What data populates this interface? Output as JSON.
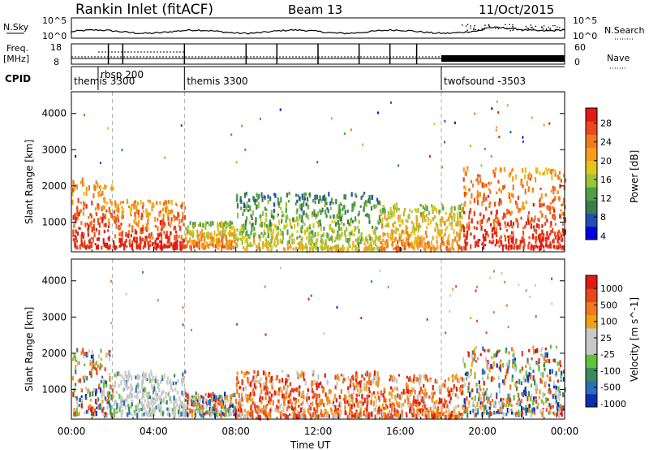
{
  "header": {
    "title": "Rankin Inlet (fitACF)",
    "beam": "Beam 13",
    "date": "11/Oct/2015"
  },
  "summary_panels": {
    "nsky_label": "N.Sky",
    "nsky_ticks": [
      "10^5",
      "10^0"
    ],
    "nsearch_label": "N.Search",
    "freq_label_1": "Freq.",
    "freq_label_2": "[MHz]",
    "freq_ticks": [
      "18",
      "8"
    ],
    "nave_label": "Nave",
    "nave_ticks": [
      "60",
      "0"
    ],
    "cpid_label": "CPID",
    "cpid_segments": [
      {
        "name": "themis 3300",
        "start_h": 0.0,
        "end_h": 1.3
      },
      {
        "name": "rbsp 200",
        "start_h": 1.3,
        "end_h": 5.5
      },
      {
        "name": "themis 3300",
        "start_h": 5.5,
        "end_h": 18.0
      },
      {
        "name": "twofsound -3503",
        "start_h": 18.0,
        "end_h": 24.0
      }
    ]
  },
  "chart_data": [
    {
      "type": "heatmap",
      "name": "power",
      "xlabel": "",
      "ylabel": "Slant Range [km]",
      "xlim_hours": [
        0,
        24
      ],
      "ylim_km": [
        180,
        4600
      ],
      "yticks": [
        1000,
        2000,
        3000,
        4000
      ],
      "colorbar_label": "Power [dB]",
      "colorbar_ticks": [
        "28",
        "24",
        "20",
        "16",
        "12",
        "8",
        "4"
      ],
      "colorbar_colors": [
        "#0000e0",
        "#1e4fb0",
        "#3b7d4e",
        "#4f9e46",
        "#9ac23c",
        "#e0c51f",
        "#f59d1a",
        "#f07a1e",
        "#e84a1c",
        "#e01a14"
      ],
      "echo_regions": [
        {
          "t0": 0.0,
          "t1": 2.0,
          "r0": 300,
          "r1": 2200,
          "level": "high"
        },
        {
          "t0": 2.0,
          "t1": 5.5,
          "r0": 300,
          "r1": 1600,
          "level": "high"
        },
        {
          "t0": 5.5,
          "t1": 8.0,
          "r0": 300,
          "r1": 1000,
          "level": "medium"
        },
        {
          "t0": 8.0,
          "t1": 15.0,
          "r0": 250,
          "r1": 1800,
          "level": "low"
        },
        {
          "t0": 15.0,
          "t1": 19.0,
          "r0": 250,
          "r1": 1500,
          "level": "medium"
        },
        {
          "t0": 19.0,
          "t1": 24.0,
          "r0": 300,
          "r1": 2500,
          "level": "high"
        }
      ]
    },
    {
      "type": "heatmap",
      "name": "velocity",
      "xlabel": "Time UT",
      "ylabel": "Slant Range [km]",
      "xlim_hours": [
        0,
        24
      ],
      "ylim_km": [
        180,
        4600
      ],
      "xticks": [
        "00:00",
        "04:00",
        "08:00",
        "12:00",
        "16:00",
        "20:00",
        "00:00"
      ],
      "yticks": [
        1000,
        2000,
        3000,
        4000
      ],
      "colorbar_label": "Velocity [m s^-1]",
      "colorbar_ticks": [
        "1000",
        "500",
        "100",
        "25",
        "-25",
        "-100",
        "-500",
        "-1000"
      ],
      "colorbar_colors": [
        "#0a2fb0",
        "#2a6fb8",
        "#3c8a5a",
        "#5fc23c",
        "#c8c8c8",
        "#c8c8c8",
        "#f0a015",
        "#f07a1e",
        "#e8461c",
        "#e01a14"
      ],
      "echo_regions": [
        {
          "t0": 0.0,
          "t1": 2.0,
          "r0": 300,
          "r1": 2100,
          "level": "mixed"
        },
        {
          "t0": 2.0,
          "t1": 5.5,
          "r0": 300,
          "r1": 1500,
          "level": "groundscatter"
        },
        {
          "t0": 5.5,
          "t1": 8.0,
          "r0": 300,
          "r1": 900,
          "level": "mixed"
        },
        {
          "t0": 8.0,
          "t1": 15.0,
          "r0": 250,
          "r1": 1500,
          "level": "away"
        },
        {
          "t0": 15.0,
          "t1": 19.0,
          "r0": 250,
          "r1": 1400,
          "level": "away"
        },
        {
          "t0": 19.0,
          "t1": 24.0,
          "r0": 300,
          "r1": 2200,
          "level": "mixed"
        }
      ]
    }
  ]
}
